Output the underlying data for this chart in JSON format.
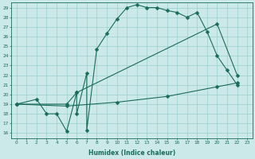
{
  "xlabel": "Humidex (Indice chaleur)",
  "xlim": [
    -0.5,
    23.5
  ],
  "ylim": [
    15.5,
    29.5
  ],
  "xticks": [
    0,
    1,
    2,
    3,
    4,
    5,
    6,
    7,
    8,
    9,
    10,
    11,
    12,
    13,
    14,
    15,
    16,
    17,
    18,
    19,
    20,
    21,
    22,
    23
  ],
  "yticks": [
    16,
    17,
    18,
    19,
    20,
    21,
    22,
    23,
    24,
    25,
    26,
    27,
    28,
    29
  ],
  "bg_color": "#cce9e9",
  "line_color": "#1a6b5a",
  "grid_color": "#9bcece",
  "line1_x": [
    0,
    2,
    3,
    4,
    5,
    6,
    6,
    7,
    7,
    8,
    9,
    10,
    11,
    12,
    13,
    14,
    15,
    16,
    17,
    18,
    19,
    20,
    21,
    22
  ],
  "line1_y": [
    19,
    19.5,
    18,
    18,
    16.2,
    20.2,
    18.0,
    22.2,
    16.3,
    24.7,
    26.3,
    27.8,
    29.0,
    29.3,
    29.0,
    29.0,
    28.7,
    28.5,
    28.0,
    28.5,
    26.5,
    24.0,
    22.5,
    21.0
  ],
  "line2_x": [
    0,
    5,
    6,
    20,
    22
  ],
  "line2_y": [
    19,
    19.0,
    20.2,
    27.3,
    22.0
  ],
  "line3_x": [
    0,
    5,
    10,
    15,
    20,
    22
  ],
  "line3_y": [
    19,
    18.8,
    19.2,
    19.8,
    20.8,
    21.2
  ]
}
